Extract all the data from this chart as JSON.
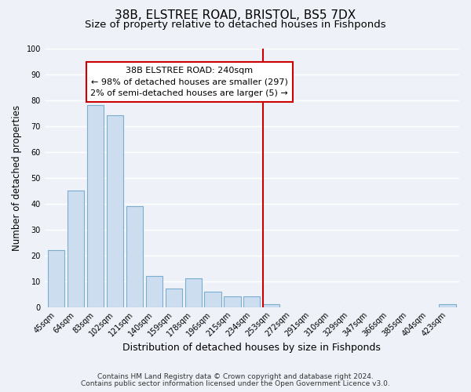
{
  "title": "38B, ELSTREE ROAD, BRISTOL, BS5 7DX",
  "subtitle": "Size of property relative to detached houses in Fishponds",
  "xlabel": "Distribution of detached houses by size in Fishponds",
  "ylabel": "Number of detached properties",
  "bar_labels": [
    "45sqm",
    "64sqm",
    "83sqm",
    "102sqm",
    "121sqm",
    "140sqm",
    "159sqm",
    "178sqm",
    "196sqm",
    "215sqm",
    "234sqm",
    "253sqm",
    "272sqm",
    "291sqm",
    "310sqm",
    "329sqm",
    "347sqm",
    "366sqm",
    "385sqm",
    "404sqm",
    "423sqm"
  ],
  "bar_values": [
    22,
    45,
    78,
    74,
    39,
    12,
    7,
    11,
    6,
    4,
    4,
    1,
    0,
    0,
    0,
    0,
    0,
    0,
    0,
    0,
    1
  ],
  "bar_color": "#ccddf0",
  "bar_edge_color": "#7aadce",
  "vline_x": 10.57,
  "vline_color": "#cc0000",
  "annotation_title": "38B ELSTREE ROAD: 240sqm",
  "annotation_line1": "← 98% of detached houses are smaller (297)",
  "annotation_line2": "2% of semi-detached houses are larger (5) →",
  "annotation_box_color": "#cc0000",
  "ylim": [
    0,
    100
  ],
  "yticks": [
    0,
    10,
    20,
    30,
    40,
    50,
    60,
    70,
    80,
    90,
    100
  ],
  "footer1": "Contains HM Land Registry data © Crown copyright and database right 2024.",
  "footer2": "Contains public sector information licensed under the Open Government Licence v3.0.",
  "bg_color": "#eef2f8",
  "grid_color": "#ffffff",
  "title_fontsize": 11,
  "subtitle_fontsize": 9.5,
  "xlabel_fontsize": 9,
  "ylabel_fontsize": 8.5,
  "tick_fontsize": 7,
  "annotation_fontsize": 8,
  "footer_fontsize": 6.5
}
